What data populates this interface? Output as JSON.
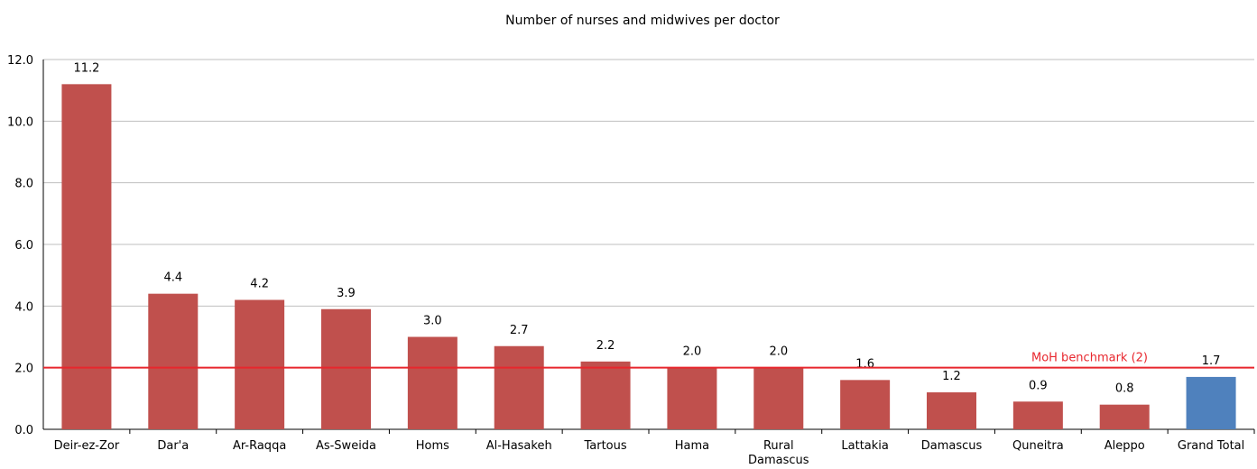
{
  "chart_data": {
    "type": "bar",
    "title": "Number of nurses and midwives  per doctor",
    "xlabel": "",
    "ylabel": "",
    "ylim": [
      0,
      12
    ],
    "yticks": [
      "0.0",
      "2.0",
      "4.0",
      "6.0",
      "8.0",
      "10.0",
      "12.0"
    ],
    "grid": true,
    "categories": [
      [
        "Deir-ez-Zor"
      ],
      [
        "Dar'a"
      ],
      [
        "Ar-Raqqa"
      ],
      [
        "As-Sweida"
      ],
      [
        "Homs"
      ],
      [
        "Al-Hasakeh"
      ],
      [
        "Tartous"
      ],
      [
        "Hama"
      ],
      [
        "Rural",
        "Damascus"
      ],
      [
        "Lattakia"
      ],
      [
        "Damascus"
      ],
      [
        "Quneitra"
      ],
      [
        "Aleppo"
      ],
      [
        "Grand Total"
      ]
    ],
    "values": [
      11.2,
      4.4,
      4.2,
      3.9,
      3.0,
      2.7,
      2.2,
      2.0,
      2.0,
      1.6,
      1.2,
      0.9,
      0.8,
      1.7
    ],
    "data_labels": [
      "11.2",
      "4.4",
      "4.2",
      "3.9",
      "3.0",
      "2.7",
      "2.2",
      "2.0",
      "2.0",
      "1.6",
      "1.2",
      "0.9",
      "0.8",
      "1.7"
    ],
    "bar_colors": [
      "#c0504d",
      "#c0504d",
      "#c0504d",
      "#c0504d",
      "#c0504d",
      "#c0504d",
      "#c0504d",
      "#c0504d",
      "#c0504d",
      "#c0504d",
      "#c0504d",
      "#c0504d",
      "#c0504d",
      "#4f81bd"
    ],
    "benchmark": {
      "value": 2,
      "label": "MoH benchmark (2)",
      "color": "#e8262d"
    },
    "gridline_color": "#bfbfbf"
  }
}
